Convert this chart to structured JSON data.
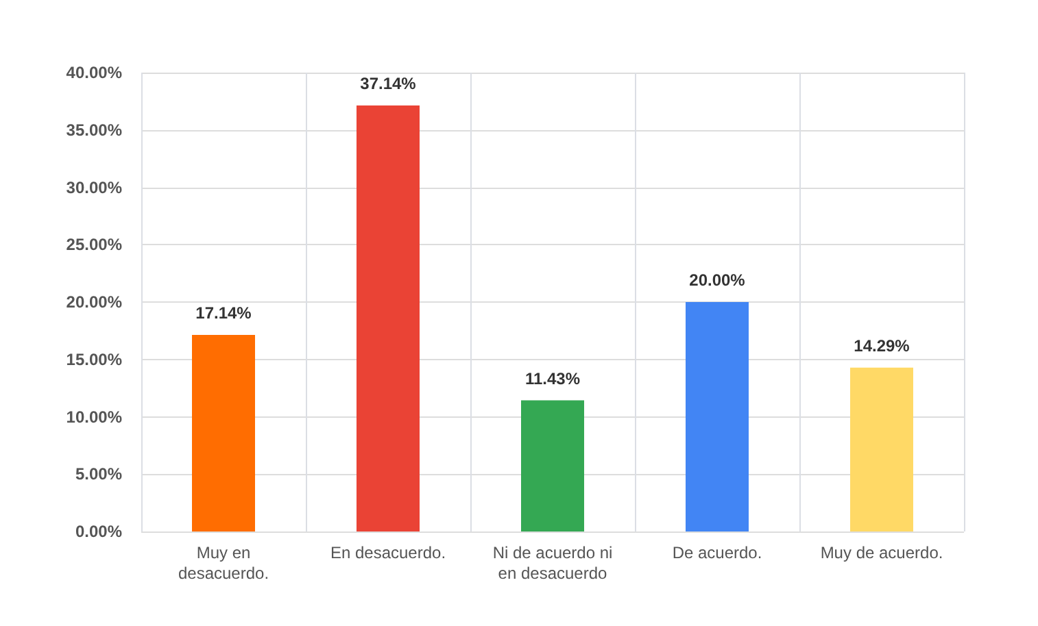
{
  "chart_data": {
    "type": "bar",
    "categories": [
      "Muy en\ndesacuerdo.",
      "En desacuerdo.",
      "Ni de acuerdo ni\nen desacuerdo",
      "De acuerdo.",
      "Muy de acuerdo."
    ],
    "values": [
      17.14,
      37.14,
      11.43,
      20.0,
      14.29
    ],
    "value_labels": [
      "17.14%",
      "37.14%",
      "11.43%",
      "20.00%",
      "14.29%"
    ],
    "colors": [
      "#ff6d01",
      "#ea4335",
      "#34a853",
      "#4285f4",
      "#ffd966"
    ],
    "ylim": [
      0,
      40
    ],
    "yticks": [
      {
        "value": 0,
        "label": "0.00%"
      },
      {
        "value": 5,
        "label": "5.00%"
      },
      {
        "value": 10,
        "label": "10.00%"
      },
      {
        "value": 15,
        "label": "15.00%"
      },
      {
        "value": 20,
        "label": "20.00%"
      },
      {
        "value": 25,
        "label": "25.00%"
      },
      {
        "value": 30,
        "label": "30.00%"
      },
      {
        "value": 35,
        "label": "35.00%"
      },
      {
        "value": 40,
        "label": "40.00%"
      }
    ],
    "grid": true
  }
}
